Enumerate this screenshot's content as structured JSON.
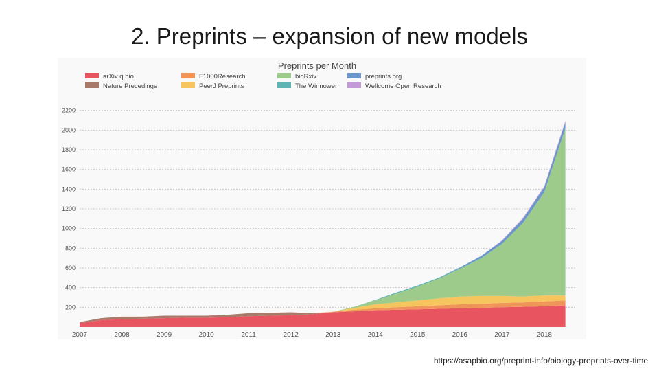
{
  "slide": {
    "title": "2. Preprints – expansion of new models",
    "source": "https://asapbio.org/preprint-info/biology-preprints-over-time"
  },
  "chart_data": {
    "type": "area",
    "stacked": true,
    "title": "Preprints per Month",
    "xlabel": "",
    "ylabel": "",
    "x_ticks": [
      "2007",
      "2008",
      "2009",
      "2010",
      "2011",
      "2012",
      "2013",
      "2014",
      "2015",
      "2016",
      "2017",
      "2018"
    ],
    "y_ticks": [
      200,
      400,
      600,
      800,
      1000,
      1200,
      1400,
      1600,
      1800,
      2000,
      2200
    ],
    "ylim": [
      0,
      2400
    ],
    "grid": "horizontal dotted",
    "legend_position": "top",
    "x": [
      "2007-01",
      "2007-07",
      "2008-01",
      "2008-07",
      "2009-01",
      "2009-07",
      "2010-01",
      "2010-07",
      "2011-01",
      "2011-07",
      "2012-01",
      "2012-07",
      "2013-01",
      "2013-07",
      "2014-01",
      "2014-07",
      "2015-01",
      "2015-07",
      "2016-01",
      "2016-07",
      "2017-01",
      "2017-07",
      "2018-01",
      "2018-07"
    ],
    "series": [
      {
        "name": "arXiv q bio",
        "color": "#e8545f",
        "values": [
          40,
          70,
          80,
          85,
          90,
          95,
          95,
          100,
          110,
          115,
          120,
          130,
          150,
          160,
          170,
          175,
          180,
          185,
          190,
          195,
          200,
          205,
          210,
          220
        ]
      },
      {
        "name": "Nature Precedings",
        "color": "#a87a6a",
        "values": [
          10,
          20,
          25,
          20,
          25,
          20,
          20,
          25,
          30,
          30,
          30,
          10,
          0,
          0,
          0,
          0,
          0,
          0,
          0,
          0,
          0,
          0,
          0,
          0
        ]
      },
      {
        "name": "F1000Research",
        "color": "#f0955a",
        "values": [
          0,
          0,
          0,
          0,
          0,
          0,
          0,
          0,
          0,
          0,
          0,
          0,
          5,
          15,
          20,
          25,
          30,
          35,
          40,
          40,
          45,
          45,
          50,
          50
        ]
      },
      {
        "name": "PeerJ Preprints",
        "color": "#f7c55e",
        "values": [
          0,
          0,
          0,
          0,
          0,
          0,
          0,
          0,
          0,
          0,
          0,
          0,
          0,
          20,
          40,
          50,
          60,
          70,
          80,
          80,
          70,
          60,
          60,
          50
        ]
      },
      {
        "name": "bioRxiv",
        "color": "#9ccb8c",
        "values": [
          0,
          0,
          0,
          0,
          0,
          0,
          0,
          0,
          0,
          0,
          0,
          0,
          0,
          10,
          40,
          90,
          140,
          200,
          280,
          380,
          530,
          750,
          1050,
          1700
        ]
      },
      {
        "name": "The Winnower",
        "color": "#5fb3b3",
        "values": [
          0,
          0,
          0,
          0,
          0,
          0,
          0,
          0,
          0,
          0,
          0,
          0,
          0,
          0,
          5,
          10,
          10,
          10,
          5,
          5,
          0,
          0,
          0,
          0
        ]
      },
      {
        "name": "preprints.org",
        "color": "#6b96cc",
        "values": [
          0,
          0,
          0,
          0,
          0,
          0,
          0,
          0,
          0,
          0,
          0,
          0,
          0,
          0,
          0,
          0,
          0,
          0,
          10,
          20,
          30,
          40,
          50,
          60
        ]
      },
      {
        "name": "Wellcome Open Research",
        "color": "#c49ad6",
        "values": [
          0,
          0,
          0,
          0,
          0,
          0,
          0,
          0,
          0,
          0,
          0,
          0,
          0,
          0,
          0,
          0,
          0,
          0,
          0,
          0,
          5,
          10,
          10,
          15
        ]
      }
    ]
  }
}
